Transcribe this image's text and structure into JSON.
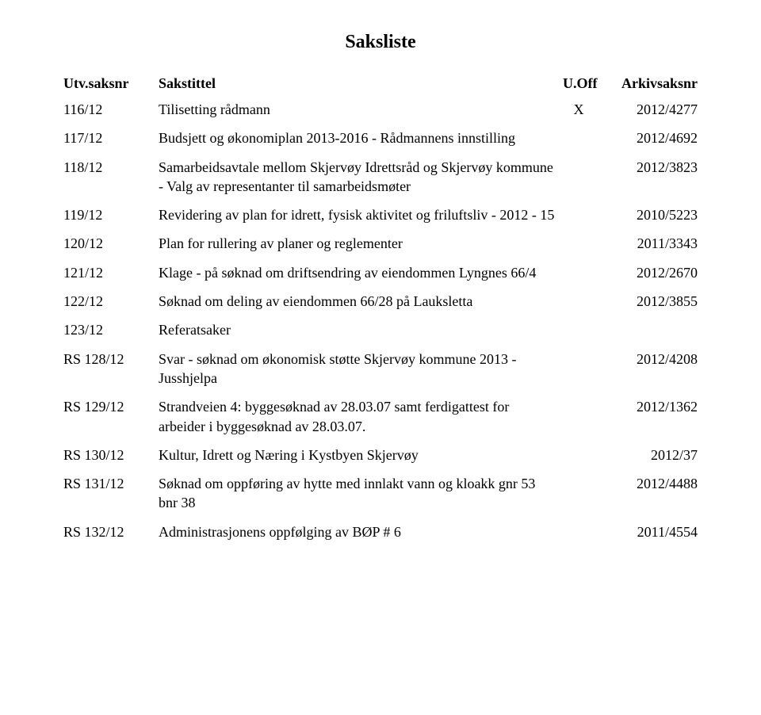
{
  "title": "Saksliste",
  "headers": {
    "id": "Utv.saksnr",
    "sakstittel": "Sakstittel",
    "uoff": "U.Off",
    "arkiv": "Arkivsaksnr"
  },
  "rows": [
    {
      "id": "116/12",
      "title": "Tilisetting rådmann",
      "x": "X",
      "arkiv": "2012/4277"
    },
    {
      "id": "117/12",
      "title": "Budsjett og økonomiplan 2013-2016 - Rådmannens innstilling",
      "x": "",
      "arkiv": "2012/4692"
    },
    {
      "id": "118/12",
      "title": "Samarbeidsavtale mellom Skjervøy Idrettsråd og Skjervøy kommune - Valg av representanter til samarbeidsmøter",
      "x": "",
      "arkiv": "2012/3823"
    },
    {
      "id": "119/12",
      "title": "Revidering av plan for idrett, fysisk aktivitet og friluftsliv - 2012 - 15",
      "x": "",
      "arkiv": "2010/5223"
    },
    {
      "id": "120/12",
      "title": "Plan for rullering av planer og reglementer",
      "x": "",
      "arkiv": "2011/3343"
    },
    {
      "id": "121/12",
      "title": "Klage - på søknad om driftsendring av eiendommen Lyngnes 66/4",
      "x": "",
      "arkiv": "2012/2670"
    },
    {
      "id": "122/12",
      "title": "Søknad om deling av eiendommen 66/28 på Lauksletta",
      "x": "",
      "arkiv": "2012/3855"
    },
    {
      "id": "123/12",
      "title": "Referatsaker",
      "x": "",
      "arkiv": ""
    },
    {
      "id": "RS 128/12",
      "title": "Svar - søknad om økonomisk støtte Skjervøy kommune 2013 - Jusshjelpa",
      "x": "",
      "arkiv": "2012/4208"
    },
    {
      "id": "RS 129/12",
      "title": "Strandveien 4: byggesøknad av 28.03.07 samt ferdigattest for arbeider i byggesøknad av 28.03.07.",
      "x": "",
      "arkiv": "2012/1362"
    },
    {
      "id": "RS 130/12",
      "title": "Kultur, Idrett og Næring i Kystbyen Skjervøy",
      "x": "",
      "arkiv": "2012/37"
    },
    {
      "id": "RS 131/12",
      "title": "Søknad om oppføring av hytte med innlakt vann og kloakk gnr 53 bnr 38",
      "x": "",
      "arkiv": "2012/4488"
    },
    {
      "id": "RS 132/12",
      "title": "Administrasjonens oppfølging av BØP # 6",
      "x": "",
      "arkiv": "2011/4554"
    }
  ]
}
